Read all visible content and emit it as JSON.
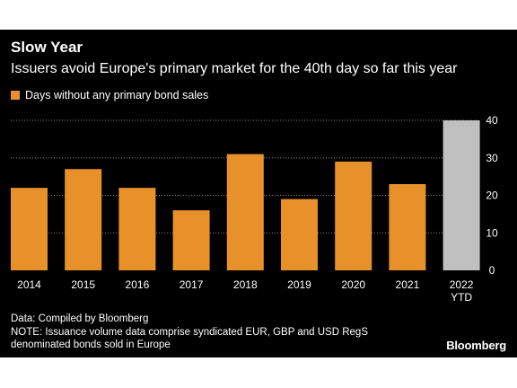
{
  "colors": {
    "background": "#000000",
    "bar": "#e8912b",
    "highlight_bar": "#c0c0c0",
    "grid": "#888888",
    "text": "#ffffff"
  },
  "legend_label": "Days without any primary bond sales",
  "source": "Data: Compiled by Bloomberg",
  "note_line1": "NOTE: Issuance volume data comprise syndicated EUR, GBP and USD RegS",
  "note_line2": "denominated bonds sold in Europe",
  "brand": "Bloomberg",
  "chart_data": {
    "type": "bar",
    "title": "Slow Year",
    "subtitle": "Issuers avoid Europe's primary market for the 40th day so far this year",
    "categories": [
      "2014",
      "2015",
      "2016",
      "2017",
      "2018",
      "2019",
      "2020",
      "2021",
      "2022"
    ],
    "category_sublabels": [
      "",
      "",
      "",
      "",
      "",
      "",
      "",
      "",
      "YTD"
    ],
    "series": [
      {
        "name": "Days without any primary bond sales",
        "values": [
          22,
          27,
          22,
          16,
          31,
          19,
          29,
          23,
          40
        ]
      }
    ],
    "highlight_category": "2022",
    "ylim": [
      0,
      40
    ],
    "yticks": [
      0,
      10,
      20,
      30,
      40
    ],
    "y_axis_side": "right",
    "grid": true,
    "legend": "top-left",
    "xlabel": "",
    "ylabel": ""
  }
}
